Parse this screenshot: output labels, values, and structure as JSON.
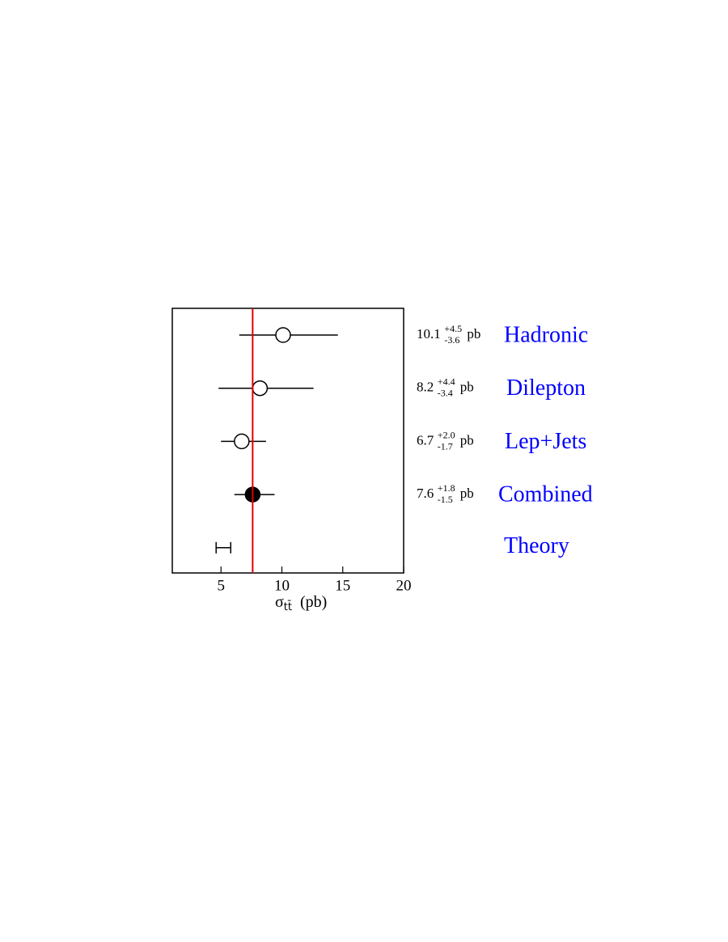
{
  "chart_data": {
    "type": "forest",
    "categories": [
      "Hadronic",
      "Dilepton",
      "Lep+Jets",
      "Combined"
    ],
    "values": [
      10.1,
      8.2,
      6.7,
      7.6
    ],
    "err_plus": [
      4.5,
      4.4,
      2.0,
      1.8
    ],
    "err_plus_labels": [
      "+4.5",
      "+4.4",
      "+2.0",
      "+1.8"
    ],
    "err_minus": [
      3.6,
      3.4,
      1.7,
      1.5
    ],
    "err_minus_labels": [
      "-3.6",
      "-3.4",
      "-1.7",
      "-1.5"
    ],
    "filled": [
      false,
      false,
      false,
      true
    ],
    "unit_label": "pb",
    "label_color": "#0000ff",
    "theory": {
      "name": "Theory",
      "low": 4.6,
      "high": 5.8
    },
    "reference_value": 7.6,
    "reference_color": "#e00000",
    "xlim": [
      1,
      20
    ],
    "xticks": [
      5,
      10,
      15,
      20
    ],
    "xlabel": {
      "symbol": "σ",
      "subscript": "tt̄",
      "unit": "(pb)"
    }
  }
}
